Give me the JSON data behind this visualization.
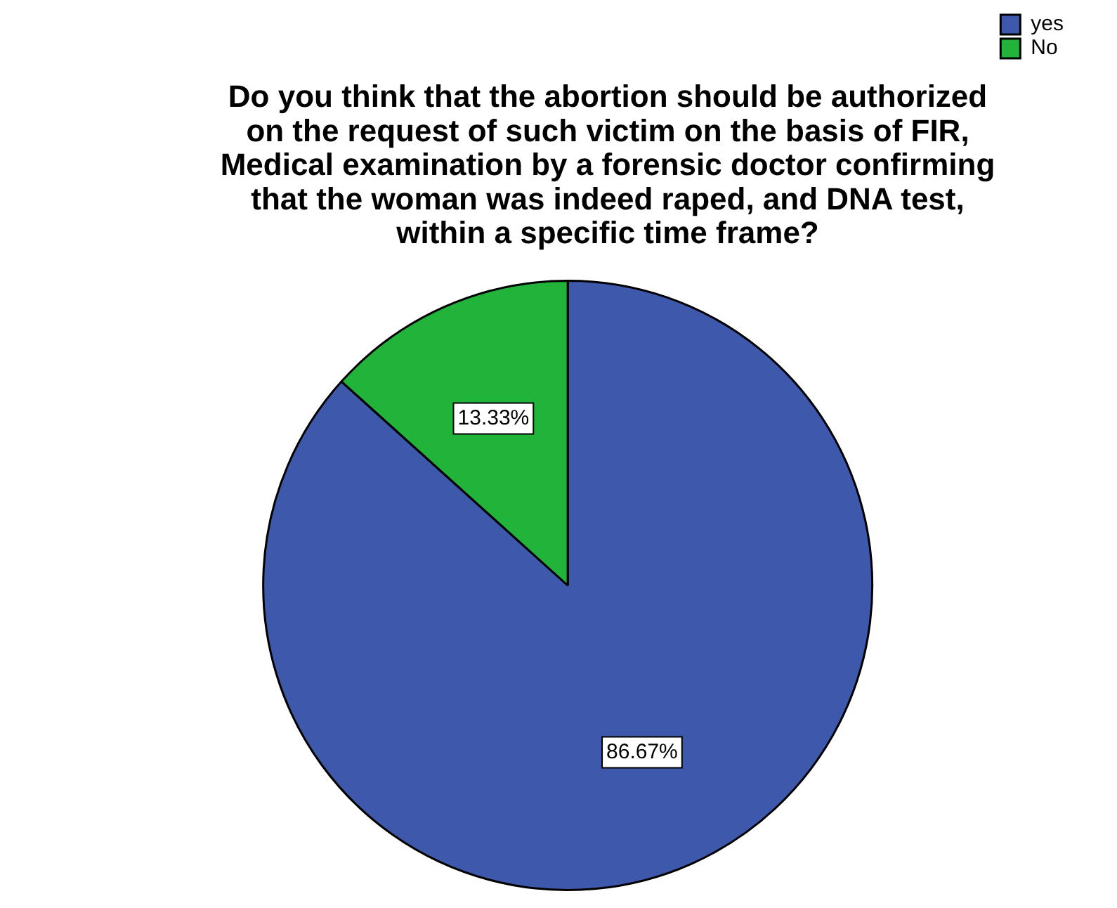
{
  "chart_data": {
    "type": "pie",
    "title": "Do you think that the abortion should be authorized\non the request of such victim on the basis of FIR,\nMedical examination by a forensic doctor confirming\nthat the woman was indeed raped, and DNA test,\nwithin a specific time frame?",
    "categories": [
      "yes",
      "No"
    ],
    "values": [
      86.67,
      13.33
    ],
    "colors": [
      "#3e58ac",
      "#21b33a"
    ],
    "value_labels": [
      "86.67%",
      "13.33%"
    ],
    "legend": "top right"
  }
}
